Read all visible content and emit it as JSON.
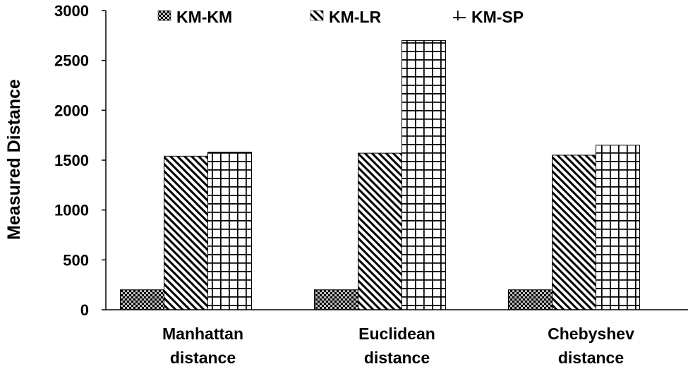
{
  "chart_data": {
    "type": "bar",
    "categories": [
      [
        "Manhattan",
        "distance"
      ],
      [
        "Euclidean",
        "distance"
      ],
      [
        "Chebyshev",
        "distance"
      ]
    ],
    "series": [
      {
        "name": "KM-KM",
        "pattern": "checker",
        "values": [
          200,
          200,
          200
        ]
      },
      {
        "name": "KM-LR",
        "pattern": "diagonal",
        "values": [
          1540,
          1570,
          1550
        ]
      },
      {
        "name": "KM-SP",
        "pattern": "grid",
        "values": [
          1580,
          2700,
          1650
        ]
      }
    ],
    "ylabel": "Measured Distance",
    "ylim": [
      0,
      3000
    ],
    "yticks": [
      0,
      500,
      1000,
      1500,
      2000,
      2500,
      3000
    ],
    "legend_position": "top",
    "grid": false,
    "colors": {
      "ink": "#000000",
      "background": "#ffffff",
      "checker_light": "#bdbdbd"
    }
  }
}
